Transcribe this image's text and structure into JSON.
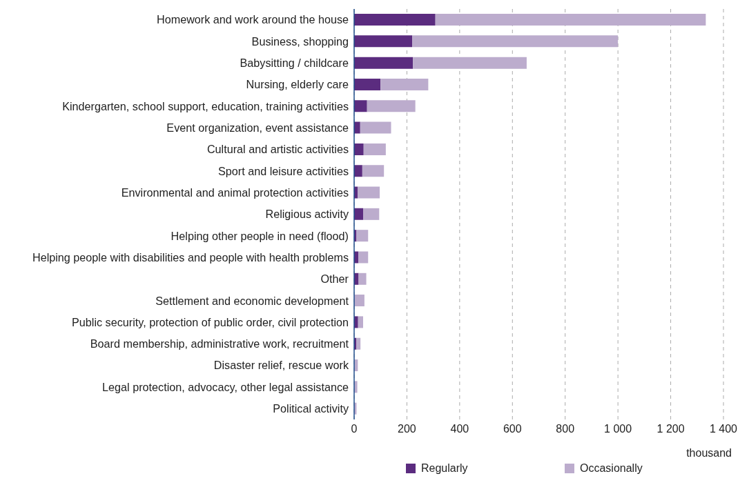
{
  "chart_data": {
    "type": "bar",
    "orientation": "horizontal",
    "stacked": true,
    "categories": [
      "Homework and work around the house",
      "Business, shopping",
      "Babysitting / childcare",
      "Nursing, elderly care",
      "Kindergarten, school support, education, training activities",
      "Event organization, event assistance",
      "Cultural and artistic activities",
      "Sport and leisure activities",
      "Environmental and animal protection activities",
      "Religious activity",
      "Helping other people in need (flood)",
      "Helping people with disabilities and people with health problems",
      "Other",
      "Settlement and economic development",
      "Public security, protection of public order, civil protection",
      "Board membership, administrative work, recruitment",
      "Disaster relief, rescue work",
      "Legal protection, advocacy, other legal assistance",
      "Political activity"
    ],
    "series": [
      {
        "name": "Regularly",
        "color": "#5b2c7f",
        "values": [
          308,
          220,
          223,
          100,
          49,
          23,
          36,
          31,
          14,
          34,
          9,
          16,
          17,
          null,
          15,
          8,
          null,
          null,
          null
        ]
      },
      {
        "name": "Occasionally",
        "color": "#bcaccd",
        "values": [
          1025,
          780,
          431,
          181,
          183,
          117,
          84,
          82,
          83,
          61,
          44,
          37,
          29,
          39,
          19,
          16,
          14,
          12,
          9
        ]
      }
    ],
    "xlim": [
      0,
      1400
    ],
    "xticks": [
      0,
      200,
      400,
      600,
      800,
      {
        "value": 1000,
        "label": "1 000"
      },
      {
        "value": 1200,
        "label": "1 200"
      },
      {
        "value": 1400,
        "label": "1 400"
      }
    ],
    "xlabel": "thousand",
    "grid": "x",
    "legend": "bottom"
  }
}
